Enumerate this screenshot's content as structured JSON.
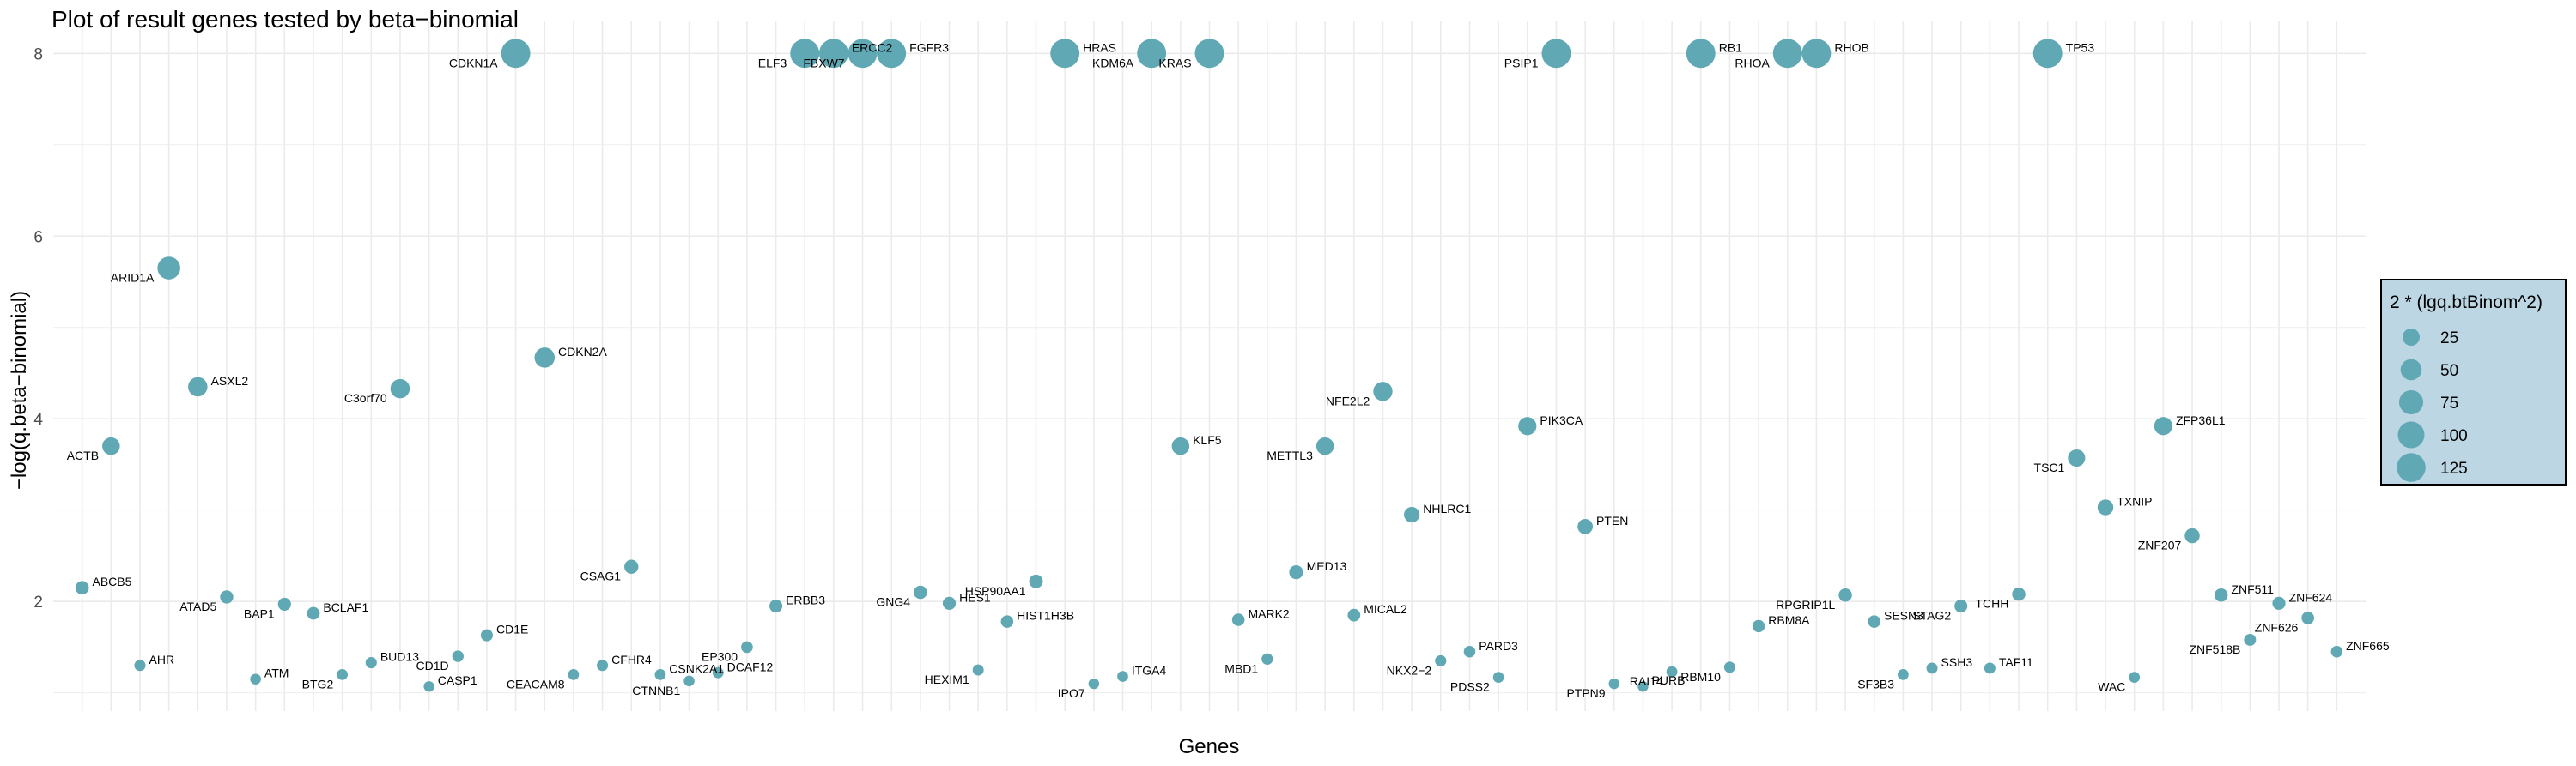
{
  "chart_data": {
    "type": "scatter",
    "title": "Plot of result genes tested by beta−binomial",
    "xlabel": "Genes",
    "ylabel": "−log(q.beta−binomial)",
    "ylim": [
      0.8,
      8.35
    ],
    "yticks": [
      2,
      4,
      6,
      8
    ],
    "grid": true,
    "point_color": "#5fa8b4",
    "legend": {
      "title": "2 * (lgq.btBinom^2)",
      "position": "right",
      "background": "#bcd7e3",
      "entries": [
        {
          "label": "25",
          "value": 25
        },
        {
          "label": "50",
          "value": 50
        },
        {
          "label": "75",
          "value": 75
        },
        {
          "label": "100",
          "value": 100
        },
        {
          "label": "125",
          "value": 125
        }
      ]
    },
    "points": [
      {
        "gene": "ABCB5",
        "y": 2.15
      },
      {
        "gene": "ACTB",
        "y": 3.7
      },
      {
        "gene": "AHR",
        "y": 1.3
      },
      {
        "gene": "ARID1A",
        "y": 5.65
      },
      {
        "gene": "ASXL2",
        "y": 4.35
      },
      {
        "gene": "ATAD5",
        "y": 2.05
      },
      {
        "gene": "ATM",
        "y": 1.15
      },
      {
        "gene": "BAP1",
        "y": 1.97
      },
      {
        "gene": "BCLAF1",
        "y": 1.87
      },
      {
        "gene": "BTG2",
        "y": 1.2
      },
      {
        "gene": "BUD13",
        "y": 1.33
      },
      {
        "gene": "C3orf70",
        "y": 4.33
      },
      {
        "gene": "CASP1",
        "y": 1.07
      },
      {
        "gene": "CD1D",
        "y": 1.4
      },
      {
        "gene": "CD1E",
        "y": 1.63
      },
      {
        "gene": "CDKN1A",
        "y": 8.0
      },
      {
        "gene": "CDKN2A",
        "y": 4.67
      },
      {
        "gene": "CEACAM8",
        "y": 1.2
      },
      {
        "gene": "CFHR4",
        "y": 1.3
      },
      {
        "gene": "CSAG1",
        "y": 2.38
      },
      {
        "gene": "CSNK2A1",
        "y": 1.2
      },
      {
        "gene": "CTNNB1",
        "y": 1.13
      },
      {
        "gene": "DCAF12",
        "y": 1.22
      },
      {
        "gene": "EP300",
        "y": 1.5
      },
      {
        "gene": "ERBB3",
        "y": 1.95
      },
      {
        "gene": "ELF3",
        "y": 8.0
      },
      {
        "gene": "ERCC2",
        "y": 8.0
      },
      {
        "gene": "FBXW7",
        "y": 8.0
      },
      {
        "gene": "FGFR3",
        "y": 8.0
      },
      {
        "gene": "GNG4",
        "y": 2.1
      },
      {
        "gene": "HES1",
        "y": 1.98
      },
      {
        "gene": "HEXIM1",
        "y": 1.25
      },
      {
        "gene": "HIST1H3B",
        "y": 1.78
      },
      {
        "gene": "HSP90AA1",
        "y": 2.22
      },
      {
        "gene": "HRAS",
        "y": 8.0
      },
      {
        "gene": "IPO7",
        "y": 1.1
      },
      {
        "gene": "ITGA4",
        "y": 1.18
      },
      {
        "gene": "KDM6A",
        "y": 8.0
      },
      {
        "gene": "KLF5",
        "y": 3.7
      },
      {
        "gene": "KRAS",
        "y": 8.0
      },
      {
        "gene": "MARK2",
        "y": 1.8
      },
      {
        "gene": "MBD1",
        "y": 1.37
      },
      {
        "gene": "MED13",
        "y": 2.32
      },
      {
        "gene": "METTL3",
        "y": 3.7
      },
      {
        "gene": "MICAL2",
        "y": 1.85
      },
      {
        "gene": "NFE2L2",
        "y": 4.3
      },
      {
        "gene": "NHLRC1",
        "y": 2.95
      },
      {
        "gene": "NKX2−2",
        "y": 1.35
      },
      {
        "gene": "PARD3",
        "y": 1.45
      },
      {
        "gene": "PDSS2",
        "y": 1.17
      },
      {
        "gene": "PIK3CA",
        "y": 3.92
      },
      {
        "gene": "PSIP1",
        "y": 8.0
      },
      {
        "gene": "PTEN",
        "y": 2.82
      },
      {
        "gene": "PTPN9",
        "y": 1.1
      },
      {
        "gene": "PURB",
        "y": 1.07
      },
      {
        "gene": "RAI14",
        "y": 1.23
      },
      {
        "gene": "RB1",
        "y": 8.0
      },
      {
        "gene": "RBM10",
        "y": 1.28
      },
      {
        "gene": "RBM8A",
        "y": 1.73
      },
      {
        "gene": "RHOA",
        "y": 8.0
      },
      {
        "gene": "RHOB",
        "y": 8.0
      },
      {
        "gene": "RPGRIP1L",
        "y": 2.07
      },
      {
        "gene": "SESN3",
        "y": 1.78
      },
      {
        "gene": "SF3B3",
        "y": 1.2
      },
      {
        "gene": "SSH3",
        "y": 1.27
      },
      {
        "gene": "STAG2",
        "y": 1.95
      },
      {
        "gene": "TAF11",
        "y": 1.27
      },
      {
        "gene": "TCHH",
        "y": 2.08
      },
      {
        "gene": "TP53",
        "y": 8.0
      },
      {
        "gene": "TSC1",
        "y": 3.57
      },
      {
        "gene": "TXNIP",
        "y": 3.03
      },
      {
        "gene": "WAC",
        "y": 1.17
      },
      {
        "gene": "ZFP36L1",
        "y": 3.92
      },
      {
        "gene": "ZNF207",
        "y": 2.72
      },
      {
        "gene": "ZNF511",
        "y": 2.07
      },
      {
        "gene": "ZNF518B",
        "y": 1.58
      },
      {
        "gene": "ZNF624",
        "y": 1.98
      },
      {
        "gene": "ZNF626",
        "y": 1.82
      },
      {
        "gene": "ZNF665",
        "y": 1.45
      }
    ]
  }
}
